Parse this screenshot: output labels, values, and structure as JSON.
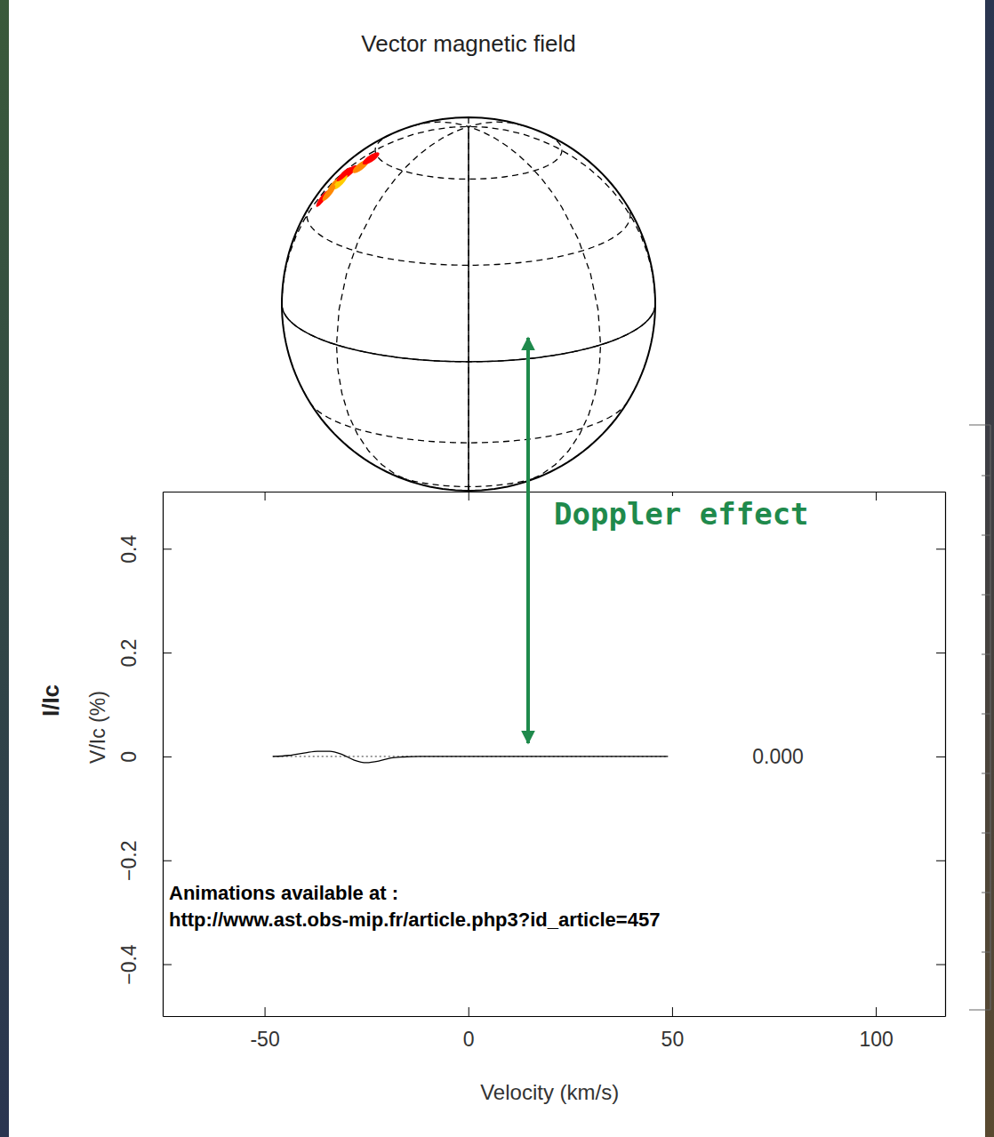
{
  "chart_data": {
    "type": "line",
    "title": "Vector magnetic field",
    "x_label": "Velocity (km/s)",
    "y_labels": [
      "I/Ic",
      "V/Ic (%)"
    ],
    "x": [
      -48,
      -44,
      -40,
      -37,
      -34,
      -31,
      -28,
      -25,
      -22,
      -19,
      -16,
      -12,
      -5,
      0,
      10,
      20,
      30,
      40,
      49
    ],
    "values": [
      0,
      0.002,
      0.007,
      0.01,
      0.01,
      0.004,
      -0.007,
      -0.012,
      -0.009,
      -0.003,
      -0.001,
      0,
      0,
      0,
      0,
      0,
      0,
      0,
      0
    ],
    "color": "#000000",
    "xlim": [
      -75,
      117
    ],
    "xticks": [
      -50,
      0,
      50,
      100
    ],
    "ylim": [
      -0.5,
      0.51
    ],
    "yticks": [
      {
        "value": -0.4,
        "label": "−0.4"
      },
      {
        "value": -0.2,
        "label": "−0.2"
      },
      0,
      0.2,
      0.4
    ],
    "annotations": [
      "Doppler effect",
      "0.000",
      "Animations available at :",
      "http://www.ast.obs-mip.fr/article.php3?id_article=457"
    ]
  }
}
